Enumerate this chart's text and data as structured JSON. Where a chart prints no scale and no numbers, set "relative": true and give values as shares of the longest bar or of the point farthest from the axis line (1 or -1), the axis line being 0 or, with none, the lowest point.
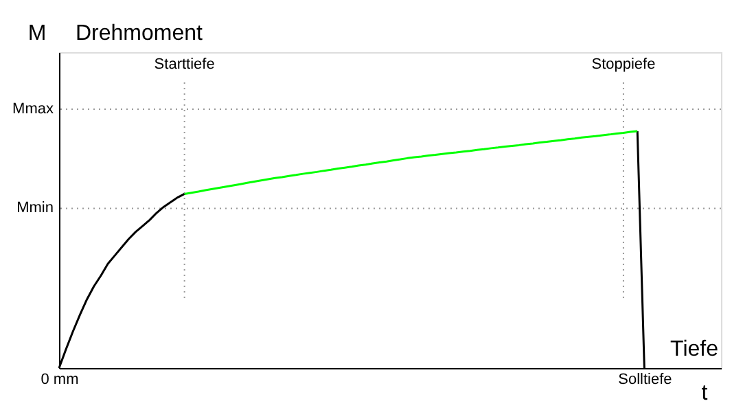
{
  "chart_data": {
    "type": "line",
    "relative": true,
    "ylabel": "M",
    "xlabel": "t",
    "annotations": [
      "Drehmoment",
      "Tiefe"
    ],
    "categories": [
      "0 mm",
      null,
      null,
      null,
      null,
      null,
      null,
      null,
      null,
      null,
      null,
      null,
      null,
      null,
      null,
      null,
      null,
      null,
      "Starttiefe",
      null,
      null,
      null,
      null,
      null,
      null,
      null,
      null,
      null,
      null,
      null,
      null,
      null,
      null,
      null,
      null,
      null,
      null,
      null,
      null,
      null,
      null,
      null,
      null,
      null,
      null,
      null,
      null,
      null,
      null,
      null,
      null,
      null,
      null,
      null,
      null,
      null,
      null,
      null,
      null,
      null,
      null,
      null,
      null,
      null,
      null,
      null,
      null,
      null,
      null,
      null,
      null,
      null,
      null,
      null,
      null,
      null,
      null,
      null,
      null,
      null,
      null,
      "Stoppiefe",
      null,
      null,
      "Solltiefe",
      null,
      null,
      null,
      null,
      null,
      null,
      null,
      null,
      null,
      null,
      null
    ],
    "series": [
      {
        "color": "#000000",
        "values": [
          0,
          0.08,
          0.155,
          0.225,
          0.29,
          0.345,
          0.39,
          0.44,
          0.475,
          0.51,
          0.545,
          0.575,
          0.6,
          0.625,
          0.655,
          0.68,
          0.7,
          0.72,
          0.735,
          null,
          null,
          null,
          null,
          null,
          null,
          null,
          null,
          null,
          null,
          null,
          null,
          null,
          null,
          null,
          null,
          null,
          null,
          null,
          null,
          null,
          null,
          null,
          null,
          null,
          null,
          null,
          null,
          null,
          null,
          null,
          null,
          null,
          null,
          null,
          null,
          null,
          null,
          null,
          null,
          null,
          null,
          null,
          null,
          null,
          null,
          null,
          null,
          null,
          null,
          null,
          null,
          null,
          null,
          null,
          null,
          null,
          null,
          null,
          null,
          null,
          null,
          null,
          null,
          1,
          0,
          null,
          null,
          null,
          null,
          null,
          null,
          null,
          null,
          null,
          null,
          null
        ]
      },
      {
        "color": "#00ff00",
        "values": [
          null,
          null,
          null,
          null,
          null,
          null,
          null,
          null,
          null,
          null,
          null,
          null,
          null,
          null,
          null,
          null,
          null,
          null,
          0.735,
          0.74,
          0.745,
          0.751,
          0.756,
          0.761,
          0.766,
          0.771,
          0.776,
          0.782,
          0.787,
          0.792,
          0.797,
          0.802,
          0.806,
          0.811,
          0.815,
          0.82,
          0.824,
          0.828,
          0.833,
          0.837,
          0.842,
          0.846,
          0.85,
          0.855,
          0.859,
          0.864,
          0.868,
          0.872,
          0.877,
          0.881,
          0.886,
          0.89,
          0.893,
          0.897,
          0.9,
          0.904,
          0.907,
          0.91,
          0.914,
          0.917,
          0.921,
          0.924,
          0.928,
          0.931,
          0.935,
          0.938,
          0.941,
          0.945,
          0.948,
          0.952,
          0.955,
          0.959,
          0.962,
          0.966,
          0.969,
          0.973,
          0.976,
          0.979,
          0.983,
          0.986,
          0.99,
          0.993,
          0.997,
          1,
          null,
          null,
          null,
          null,
          null,
          null,
          null,
          null,
          null,
          null,
          null,
          null
        ]
      }
    ],
    "ref_lines": [
      {
        "axis": "y",
        "value": 0.674,
        "label": "Mmin",
        "color": "#999999",
        "line_style": "dotted"
      },
      {
        "axis": "y",
        "value": 1.093,
        "label": "Mmax",
        "color": "#999999",
        "line_style": "dotted"
      },
      {
        "axis": "x",
        "value": "Starttiefe",
        "color": "#999999",
        "line_style": "dotted"
      },
      {
        "axis": "x",
        "value": "Stoppiefe",
        "color": "#999999",
        "line_style": "dotted"
      }
    ],
    "marker": "none",
    "line_style": "solid"
  }
}
